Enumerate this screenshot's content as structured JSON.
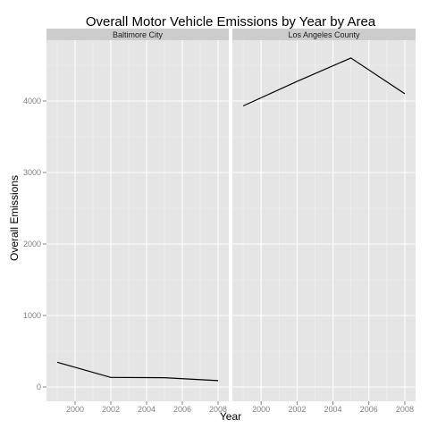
{
  "chart_data": {
    "type": "line",
    "title": "Overall Motor Vehicle Emissions by Year by Area",
    "xlabel": "Year",
    "ylabel": "Overall Emissions",
    "xlim": [
      1998.4,
      2008.6
    ],
    "ylim": [
      -200,
      4850
    ],
    "x_ticks": [
      2000,
      2002,
      2004,
      2006,
      2008
    ],
    "y_ticks": [
      0,
      1000,
      2000,
      3000,
      4000
    ],
    "grid": true,
    "legend": "none",
    "facets": [
      {
        "label": "Baltimore City",
        "x": [
          1999,
          2002,
          2005,
          2008
        ],
        "y": [
          346.8,
          134.3,
          130.4,
          88.3
        ]
      },
      {
        "label": "Los Angeles County",
        "x": [
          1999,
          2002,
          2005,
          2008
        ],
        "y": [
          3931,
          4274,
          4601,
          4101
        ]
      }
    ],
    "colors": {
      "panel_bg": "#e5e5e5",
      "strip_bg": "#cccccc",
      "grid_major": "#ffffff",
      "grid_minor": "#f2f2f2",
      "line": "#000000",
      "tick_text": "#7f7f7f"
    }
  }
}
